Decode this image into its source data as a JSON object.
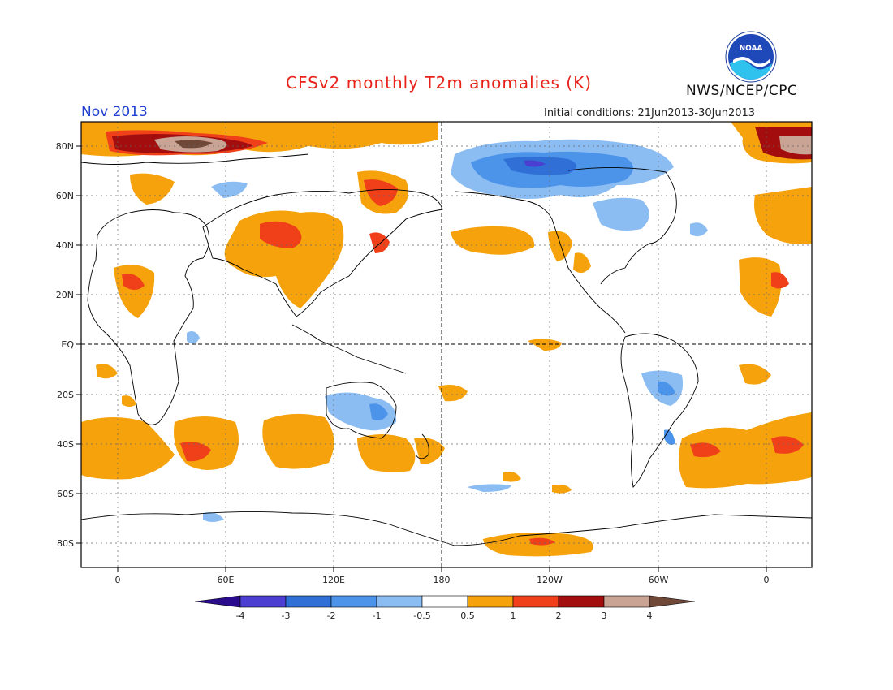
{
  "header": {
    "title": "CFSv2 monthly T2m anomalies (K)",
    "month": "Nov 2013",
    "initial_conditions": "Initial conditions: 21Jun2013-30Jun2013",
    "agency": "NWS/NCEP/CPC",
    "logo_text": "NOAA"
  },
  "axes": {
    "lat_labels": [
      "80N",
      "60N",
      "40N",
      "20N",
      "EQ",
      "20S",
      "40S",
      "60S",
      "80S"
    ],
    "lon_labels": [
      "0",
      "60E",
      "120E",
      "180",
      "120W",
      "60W",
      "0"
    ]
  },
  "colorbar": {
    "labels": [
      "-4",
      "-3",
      "-2",
      "-1",
      "-0.5",
      "0.5",
      "1",
      "2",
      "3",
      "4"
    ],
    "colors": [
      "#2a0b8c",
      "#4b3ed0",
      "#2f6fd6",
      "#4c93ea",
      "#8cbdf2",
      "#ffffff",
      "#f5a20d",
      "#f0401a",
      "#a30d0d",
      "#c9a495",
      "#704838"
    ]
  },
  "palette": {
    "ocean_land_bg": "#ffffff",
    "neg_light": "#8cbdf2",
    "neg_mid": "#4c93ea",
    "neg_strong": "#2f6fd6",
    "pos_light": "#f5a20d",
    "pos_mid": "#f0401a",
    "pos_strong": "#a30d0d",
    "pos_extreme": "#c9a495"
  }
}
